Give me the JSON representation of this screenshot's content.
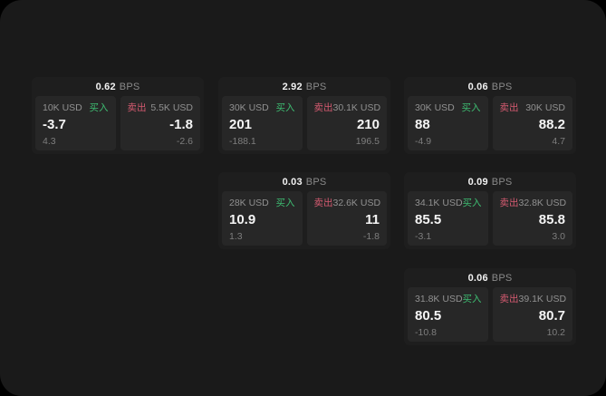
{
  "labels": {
    "bps_unit": "BPS",
    "buy": "买入",
    "sell": "卖出"
  },
  "colors": {
    "screen_bg": "#1a1a1a",
    "card_bg": "#1e1e1e",
    "panel_bg": "#272727",
    "buy_green": "#3ebd72",
    "sell_red": "#d45a70"
  },
  "cards": [
    {
      "position": "c1-r1",
      "bps": "0.62",
      "buy": {
        "notional": "10K USD",
        "price": "-3.7",
        "delta": "4.3"
      },
      "sell": {
        "notional": "5.5K USD",
        "price": "-1.8",
        "delta": "-2.6"
      }
    },
    {
      "position": "c2-r1",
      "bps": "2.92",
      "buy": {
        "notional": "30K USD",
        "price": "201",
        "delta": "-188.1"
      },
      "sell": {
        "notional": "30.1K USD",
        "price": "210",
        "delta": "196.5"
      }
    },
    {
      "position": "c3-r1",
      "bps": "0.06",
      "buy": {
        "notional": "30K USD",
        "price": "88",
        "delta": "-4.9"
      },
      "sell": {
        "notional": "30K USD",
        "price": "88.2",
        "delta": "4.7"
      }
    },
    {
      "position": "c2-r2",
      "bps": "0.03",
      "buy": {
        "notional": "28K USD",
        "price": "10.9",
        "delta": "1.3"
      },
      "sell": {
        "notional": "32.6K USD",
        "price": "11",
        "delta": "-1.8"
      }
    },
    {
      "position": "c3-r2",
      "bps": "0.09",
      "buy": {
        "notional": "34.1K USD",
        "price": "85.5",
        "delta": "-3.1"
      },
      "sell": {
        "notional": "32.8K USD",
        "price": "85.8",
        "delta": "3.0"
      }
    },
    {
      "position": "c3-r3",
      "bps": "0.06",
      "buy": {
        "notional": "31.8K USD",
        "price": "80.5",
        "delta": "-10.8"
      },
      "sell": {
        "notional": "39.1K USD",
        "price": "80.7",
        "delta": "10.2"
      }
    }
  ]
}
